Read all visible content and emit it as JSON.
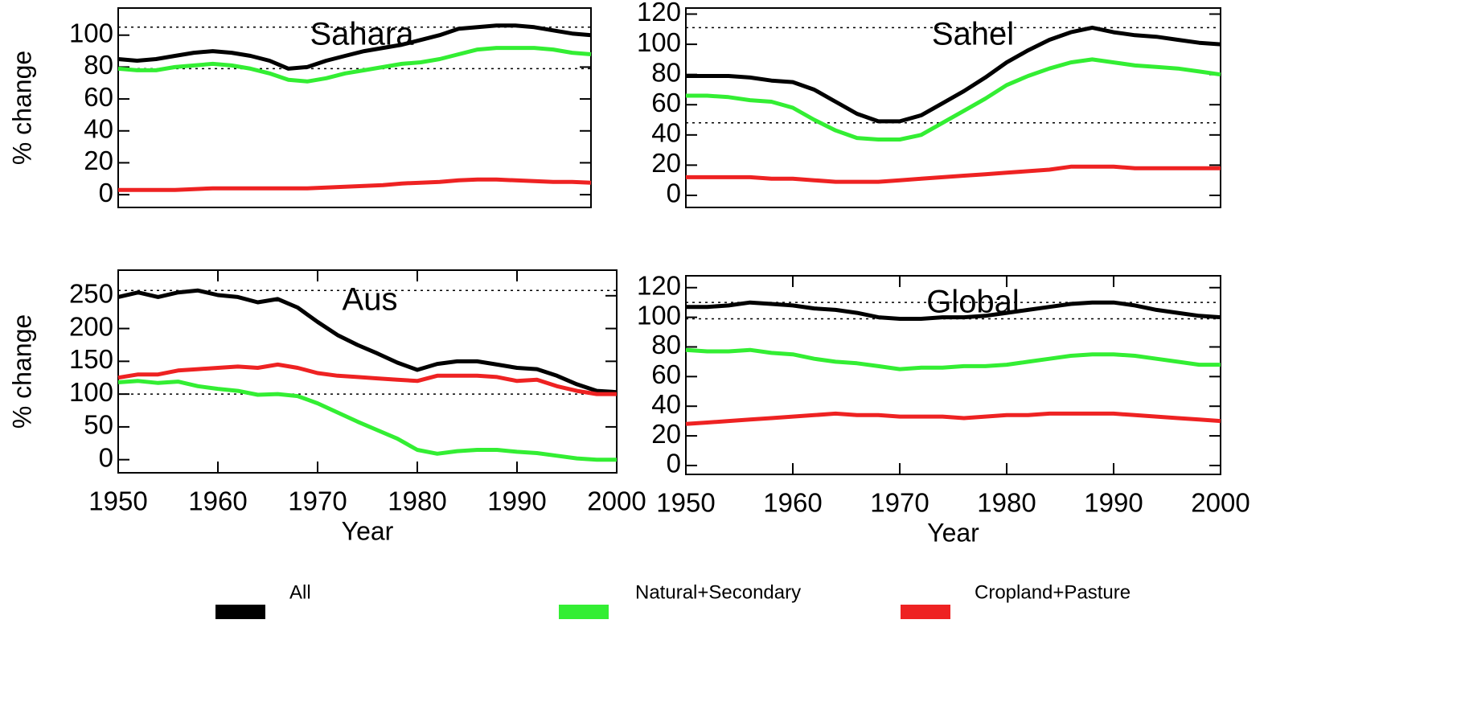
{
  "chart_data": [
    {
      "type": "line",
      "title": "Sahara",
      "ylabel": "% change",
      "x": [
        1950,
        1952,
        1954,
        1956,
        1958,
        1960,
        1962,
        1964,
        1966,
        1968,
        1970,
        1972,
        1974,
        1976,
        1978,
        1980,
        1982,
        1984,
        1986,
        1988,
        1990,
        1992,
        1994,
        1996,
        1998,
        2000
      ],
      "xlim": [
        1950,
        2000
      ],
      "ylim": [
        -8,
        117
      ],
      "yticks": [
        0,
        20,
        40,
        60,
        80,
        100
      ],
      "hlines": [
        105,
        79
      ],
      "series": [
        {
          "name": "All",
          "color": "#000000",
          "values": [
            85,
            84,
            85,
            87,
            89,
            90,
            89,
            87,
            84,
            79,
            80,
            84,
            87,
            90,
            92,
            94,
            97,
            100,
            104,
            105,
            106,
            106,
            105,
            103,
            101,
            100
          ]
        },
        {
          "name": "Natural+Secondary",
          "color": "#33ee33",
          "values": [
            79,
            78,
            78,
            80,
            81,
            82,
            81,
            79,
            76,
            72,
            71,
            73,
            76,
            78,
            80,
            82,
            83,
            85,
            88,
            91,
            92,
            92,
            92,
            91,
            89,
            88
          ]
        },
        {
          "name": "Cropland+Pasture",
          "color": "#ee2222",
          "values": [
            3,
            3,
            3,
            3,
            3.5,
            4,
            4,
            4,
            4,
            4,
            4,
            4.5,
            5,
            5.5,
            6,
            7,
            7.5,
            8,
            9,
            9.5,
            9.5,
            9,
            8.5,
            8,
            8,
            7.5
          ]
        }
      ]
    },
    {
      "type": "line",
      "title": "Sahel",
      "x": [
        1950,
        1952,
        1954,
        1956,
        1958,
        1960,
        1962,
        1964,
        1966,
        1968,
        1970,
        1972,
        1974,
        1976,
        1978,
        1980,
        1982,
        1984,
        1986,
        1988,
        1990,
        1992,
        1994,
        1996,
        1998,
        2000
      ],
      "xlim": [
        1950,
        2000
      ],
      "ylim": [
        -8,
        124
      ],
      "yticks": [
        0,
        20,
        40,
        60,
        80,
        100,
        120
      ],
      "hlines": [
        111,
        48
      ],
      "series": [
        {
          "name": "All",
          "color": "#000000",
          "values": [
            79,
            79,
            79,
            78,
            76,
            75,
            70,
            62,
            54,
            49,
            49,
            53,
            61,
            69,
            78,
            88,
            96,
            103,
            108,
            111,
            108,
            106,
            105,
            103,
            101,
            100
          ]
        },
        {
          "name": "Natural+Secondary",
          "color": "#33ee33",
          "values": [
            66,
            66,
            65,
            63,
            62,
            58,
            50,
            43,
            38,
            37,
            37,
            40,
            48,
            56,
            64,
            73,
            79,
            84,
            88,
            90,
            88,
            86,
            85,
            84,
            82,
            80
          ]
        },
        {
          "name": "Cropland+Pasture",
          "color": "#ee2222",
          "values": [
            12,
            12,
            12,
            12,
            11,
            11,
            10,
            9,
            9,
            9,
            10,
            11,
            12,
            13,
            14,
            15,
            16,
            17,
            19,
            19,
            19,
            18,
            18,
            18,
            18,
            18
          ]
        }
      ]
    },
    {
      "type": "line",
      "title": "Aus",
      "ylabel": "% change",
      "xlabel": "Year",
      "x": [
        1950,
        1952,
        1954,
        1956,
        1958,
        1960,
        1962,
        1964,
        1966,
        1968,
        1970,
        1972,
        1974,
        1976,
        1978,
        1980,
        1982,
        1984,
        1986,
        1988,
        1990,
        1992,
        1994,
        1996,
        1998,
        2000
      ],
      "xlim": [
        1950,
        2000
      ],
      "xticks": [
        1950,
        1960,
        1970,
        1980,
        1990,
        2000
      ],
      "ylim": [
        -20,
        289
      ],
      "yticks": [
        0,
        50,
        100,
        150,
        200,
        250
      ],
      "hlines": [
        258,
        100
      ],
      "series": [
        {
          "name": "All",
          "color": "#000000",
          "values": [
            248,
            255,
            248,
            255,
            258,
            251,
            248,
            240,
            245,
            232,
            210,
            190,
            175,
            162,
            148,
            137,
            146,
            150,
            150,
            145,
            140,
            138,
            128,
            115,
            105,
            103
          ]
        },
        {
          "name": "Natural+Secondary",
          "color": "#33ee33",
          "values": [
            118,
            120,
            117,
            119,
            112,
            108,
            105,
            99,
            100,
            97,
            86,
            72,
            58,
            45,
            32,
            15,
            9,
            13,
            15,
            15,
            12,
            10,
            6,
            2,
            0,
            0
          ]
        },
        {
          "name": "Cropland+Pasture",
          "color": "#ee2222",
          "values": [
            125,
            130,
            130,
            136,
            138,
            140,
            142,
            140,
            145,
            140,
            132,
            128,
            126,
            124,
            122,
            120,
            128,
            128,
            128,
            126,
            120,
            122,
            112,
            105,
            100,
            100
          ]
        }
      ]
    },
    {
      "type": "line",
      "title": "Global",
      "xlabel": "Year",
      "x": [
        1950,
        1952,
        1954,
        1956,
        1958,
        1960,
        1962,
        1964,
        1966,
        1968,
        1970,
        1972,
        1974,
        1976,
        1978,
        1980,
        1982,
        1984,
        1986,
        1988,
        1990,
        1992,
        1994,
        1996,
        1998,
        2000
      ],
      "xlim": [
        1950,
        2000
      ],
      "xticks": [
        1950,
        1960,
        1970,
        1980,
        1990,
        2000
      ],
      "ylim": [
        -6,
        128
      ],
      "yticks": [
        0,
        20,
        40,
        60,
        80,
        100,
        120
      ],
      "hlines": [
        110,
        99
      ],
      "series": [
        {
          "name": "All",
          "color": "#000000",
          "values": [
            107,
            107,
            108,
            110,
            109,
            108,
            106,
            105,
            103,
            100,
            99,
            99,
            100,
            100,
            101,
            103,
            105,
            107,
            109,
            110,
            110,
            108,
            105,
            103,
            101,
            100
          ]
        },
        {
          "name": "Natural+Secondary",
          "color": "#33ee33",
          "values": [
            78,
            77,
            77,
            78,
            76,
            75,
            72,
            70,
            69,
            67,
            65,
            66,
            66,
            67,
            67,
            68,
            70,
            72,
            74,
            75,
            75,
            74,
            72,
            70,
            68,
            68
          ]
        },
        {
          "name": "Cropland+Pasture",
          "color": "#ee2222",
          "values": [
            28,
            29,
            30,
            31,
            32,
            33,
            34,
            35,
            34,
            34,
            33,
            33,
            33,
            32,
            33,
            34,
            34,
            35,
            35,
            35,
            35,
            34,
            33,
            32,
            31,
            30
          ]
        }
      ]
    }
  ]
}
